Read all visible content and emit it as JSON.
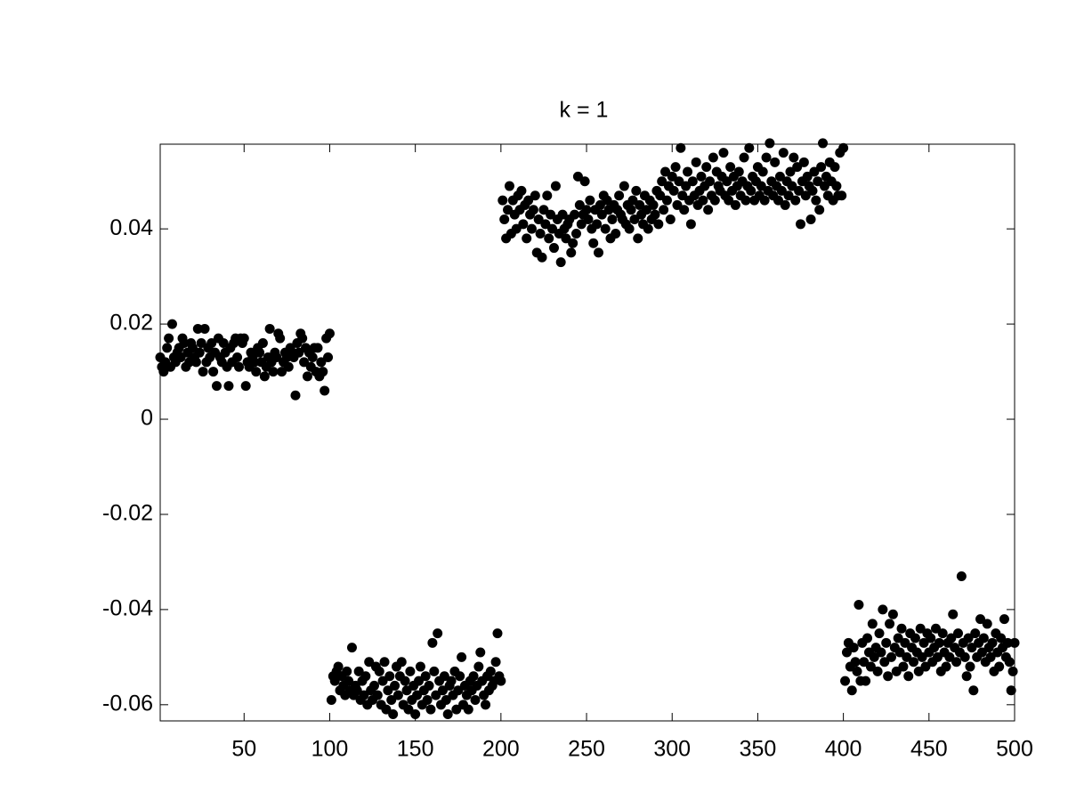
{
  "chart_data": {
    "type": "scatter",
    "title": "k = 1",
    "color": "#000000",
    "xlim": [
      1,
      500
    ],
    "xticks": [
      50,
      100,
      150,
      200,
      250,
      300,
      350,
      400,
      450,
      500
    ],
    "ylim": [
      -0.0634,
      0.0578
    ],
    "yticks": [
      -0.06,
      -0.04,
      -0.02,
      0,
      0.02,
      0.04
    ],
    "x": [
      1,
      2,
      3,
      4,
      5,
      6,
      7,
      8,
      9,
      10,
      11,
      12,
      13,
      14,
      15,
      16,
      17,
      18,
      19,
      20,
      21,
      22,
      23,
      24,
      25,
      26,
      27,
      28,
      29,
      30,
      31,
      32,
      33,
      34,
      35,
      36,
      37,
      38,
      39,
      40,
      41,
      42,
      43,
      44,
      45,
      46,
      47,
      48,
      49,
      50,
      51,
      52,
      53,
      54,
      55,
      56,
      57,
      58,
      59,
      60,
      61,
      62,
      63,
      64,
      65,
      66,
      67,
      68,
      69,
      70,
      71,
      72,
      73,
      74,
      75,
      76,
      77,
      78,
      79,
      80,
      81,
      82,
      83,
      84,
      85,
      86,
      87,
      88,
      89,
      90,
      91,
      92,
      93,
      94,
      95,
      96,
      97,
      98,
      99,
      100,
      101,
      102,
      103,
      104,
      105,
      106,
      107,
      108,
      109,
      110,
      111,
      112,
      113,
      114,
      115,
      116,
      117,
      118,
      119,
      120,
      121,
      122,
      123,
      124,
      125,
      126,
      127,
      128,
      129,
      130,
      131,
      132,
      133,
      134,
      135,
      136,
      137,
      138,
      139,
      140,
      141,
      142,
      143,
      144,
      145,
      146,
      147,
      148,
      149,
      150,
      151,
      152,
      153,
      154,
      155,
      156,
      157,
      158,
      159,
      160,
      161,
      162,
      163,
      164,
      165,
      166,
      167,
      168,
      169,
      170,
      171,
      172,
      173,
      174,
      175,
      176,
      177,
      178,
      179,
      180,
      181,
      182,
      183,
      184,
      185,
      186,
      187,
      188,
      189,
      190,
      191,
      192,
      193,
      194,
      195,
      196,
      197,
      198,
      199,
      200,
      201,
      202,
      203,
      204,
      205,
      206,
      207,
      208,
      209,
      210,
      211,
      212,
      213,
      214,
      215,
      216,
      217,
      218,
      219,
      220,
      221,
      222,
      223,
      224,
      225,
      226,
      227,
      228,
      229,
      230,
      231,
      232,
      233,
      234,
      235,
      236,
      237,
      238,
      239,
      240,
      241,
      242,
      243,
      244,
      245,
      246,
      247,
      248,
      249,
      250,
      251,
      252,
      253,
      254,
      255,
      256,
      257,
      258,
      259,
      260,
      261,
      262,
      263,
      264,
      265,
      266,
      267,
      268,
      269,
      270,
      271,
      272,
      273,
      274,
      275,
      276,
      277,
      278,
      279,
      280,
      281,
      282,
      283,
      284,
      285,
      286,
      287,
      288,
      289,
      290,
      291,
      292,
      293,
      294,
      295,
      296,
      297,
      298,
      299,
      300,
      301,
      302,
      303,
      304,
      305,
      306,
      307,
      308,
      309,
      310,
      311,
      312,
      313,
      314,
      315,
      316,
      317,
      318,
      319,
      320,
      321,
      322,
      323,
      324,
      325,
      326,
      327,
      328,
      329,
      330,
      331,
      332,
      333,
      334,
      335,
      336,
      337,
      338,
      339,
      340,
      341,
      342,
      343,
      344,
      345,
      346,
      347,
      348,
      349,
      350,
      351,
      352,
      353,
      354,
      355,
      356,
      357,
      358,
      359,
      360,
      361,
      362,
      363,
      364,
      365,
      366,
      367,
      368,
      369,
      370,
      371,
      372,
      373,
      374,
      375,
      376,
      377,
      378,
      379,
      380,
      381,
      382,
      383,
      384,
      385,
      386,
      387,
      388,
      389,
      390,
      391,
      392,
      393,
      394,
      395,
      396,
      397,
      398,
      399,
      400,
      401,
      402,
      403,
      404,
      405,
      406,
      407,
      408,
      409,
      410,
      411,
      412,
      413,
      414,
      415,
      416,
      417,
      418,
      419,
      420,
      421,
      422,
      423,
      424,
      425,
      426,
      427,
      428,
      429,
      430,
      431,
      432,
      433,
      434,
      435,
      436,
      437,
      438,
      439,
      440,
      441,
      442,
      443,
      444,
      445,
      446,
      447,
      448,
      449,
      450,
      451,
      452,
      453,
      454,
      455,
      456,
      457,
      458,
      459,
      460,
      461,
      462,
      463,
      464,
      465,
      466,
      467,
      468,
      469,
      470,
      471,
      472,
      473,
      474,
      475,
      476,
      477,
      478,
      479,
      480,
      481,
      482,
      483,
      484,
      485,
      486,
      487,
      488,
      489,
      490,
      491,
      492,
      493,
      494,
      495,
      496,
      497,
      498,
      499,
      500
    ],
    "values": [
      0.013,
      0.011,
      0.01,
      0.012,
      0.015,
      0.017,
      0.011,
      0.02,
      0.013,
      0.012,
      0.014,
      0.015,
      0.013,
      0.017,
      0.016,
      0.011,
      0.014,
      0.012,
      0.016,
      0.015,
      0.013,
      0.012,
      0.019,
      0.014,
      0.016,
      0.01,
      0.019,
      0.012,
      0.015,
      0.013,
      0.016,
      0.01,
      0.014,
      0.007,
      0.017,
      0.013,
      0.012,
      0.016,
      0.014,
      0.011,
      0.007,
      0.015,
      0.012,
      0.016,
      0.017,
      0.013,
      0.011,
      0.017,
      0.016,
      0.017,
      0.007,
      0.012,
      0.011,
      0.014,
      0.013,
      0.012,
      0.01,
      0.015,
      0.014,
      0.012,
      0.016,
      0.009,
      0.011,
      0.013,
      0.019,
      0.012,
      0.01,
      0.014,
      0.013,
      0.018,
      0.017,
      0.01,
      0.012,
      0.014,
      0.013,
      0.011,
      0.015,
      0.014,
      0.013,
      0.005,
      0.016,
      0.014,
      0.018,
      0.017,
      0.012,
      0.015,
      0.009,
      0.014,
      0.011,
      0.013,
      0.015,
      0.01,
      0.015,
      0.009,
      0.012,
      0.01,
      0.006,
      0.017,
      0.013,
      0.018,
      -0.059,
      -0.054,
      -0.055,
      -0.053,
      -0.052,
      -0.057,
      -0.054,
      -0.056,
      -0.058,
      -0.053,
      -0.055,
      -0.057,
      -0.048,
      -0.058,
      -0.056,
      -0.057,
      -0.053,
      -0.059,
      -0.055,
      -0.058,
      -0.054,
      -0.06,
      -0.051,
      -0.057,
      -0.059,
      -0.056,
      -0.052,
      -0.058,
      -0.053,
      -0.06,
      -0.055,
      -0.051,
      -0.061,
      -0.057,
      -0.054,
      -0.059,
      -0.062,
      -0.056,
      -0.052,
      -0.058,
      -0.054,
      -0.051,
      -0.06,
      -0.055,
      -0.057,
      -0.061,
      -0.053,
      -0.059,
      -0.056,
      -0.062,
      -0.058,
      -0.055,
      -0.052,
      -0.06,
      -0.057,
      -0.054,
      -0.059,
      -0.056,
      -0.061,
      -0.047,
      -0.053,
      -0.058,
      -0.045,
      -0.055,
      -0.06,
      -0.057,
      -0.054,
      -0.059,
      -0.062,
      -0.056,
      -0.055,
      -0.058,
      -0.053,
      -0.061,
      -0.057,
      -0.054,
      -0.05,
      -0.06,
      -0.056,
      -0.058,
      -0.061,
      -0.055,
      -0.057,
      -0.054,
      -0.059,
      -0.056,
      -0.052,
      -0.049,
      -0.055,
      -0.058,
      -0.06,
      -0.054,
      -0.057,
      -0.053,
      -0.056,
      -0.055,
      -0.051,
      -0.045,
      -0.054,
      -0.055,
      0.046,
      0.042,
      0.038,
      0.044,
      0.049,
      0.039,
      0.046,
      0.043,
      0.04,
      0.047,
      0.044,
      0.048,
      0.041,
      0.045,
      0.038,
      0.046,
      0.043,
      0.04,
      0.044,
      0.047,
      0.035,
      0.042,
      0.039,
      0.034,
      0.044,
      0.041,
      0.047,
      0.038,
      0.043,
      0.04,
      0.036,
      0.049,
      0.042,
      0.039,
      0.033,
      0.043,
      0.04,
      0.038,
      0.041,
      0.042,
      0.035,
      0.037,
      0.043,
      0.039,
      0.051,
      0.045,
      0.041,
      0.043,
      0.05,
      0.044,
      0.042,
      0.046,
      0.04,
      0.037,
      0.044,
      0.041,
      0.035,
      0.045,
      0.043,
      0.047,
      0.04,
      0.046,
      0.044,
      0.038,
      0.042,
      0.045,
      0.039,
      0.044,
      0.047,
      0.043,
      0.042,
      0.049,
      0.041,
      0.045,
      0.04,
      0.044,
      0.046,
      0.042,
      0.048,
      0.038,
      0.045,
      0.043,
      0.041,
      0.047,
      0.044,
      0.04,
      0.046,
      0.042,
      0.045,
      0.043,
      0.048,
      0.041,
      0.047,
      0.05,
      0.044,
      0.052,
      0.046,
      0.049,
      0.042,
      0.051,
      0.048,
      0.053,
      0.045,
      0.05,
      0.057,
      0.047,
      0.044,
      0.049,
      0.052,
      0.046,
      0.041,
      0.05,
      0.047,
      0.054,
      0.045,
      0.048,
      0.051,
      0.046,
      0.049,
      0.053,
      0.044,
      0.05,
      0.047,
      0.055,
      0.046,
      0.052,
      0.049,
      0.048,
      0.051,
      0.056,
      0.047,
      0.05,
      0.046,
      0.053,
      0.048,
      0.051,
      0.045,
      0.049,
      0.052,
      0.047,
      0.05,
      0.055,
      0.046,
      0.049,
      0.057,
      0.048,
      0.051,
      0.046,
      0.05,
      0.053,
      0.047,
      0.049,
      0.052,
      0.046,
      0.055,
      0.048,
      0.058,
      0.05,
      0.047,
      0.054,
      0.049,
      0.046,
      0.051,
      0.048,
      0.056,
      0.045,
      0.05,
      0.047,
      0.052,
      0.049,
      0.055,
      0.046,
      0.053,
      0.048,
      0.041,
      0.05,
      0.054,
      0.047,
      0.051,
      0.049,
      0.042,
      0.048,
      0.052,
      0.046,
      0.05,
      0.044,
      0.053,
      0.058,
      0.049,
      0.051,
      0.047,
      0.054,
      0.05,
      0.046,
      0.053,
      0.049,
      0.047,
      0.056,
      0.047,
      0.057,
      -0.055,
      -0.049,
      -0.047,
      -0.052,
      -0.057,
      -0.048,
      -0.051,
      -0.053,
      -0.039,
      -0.055,
      -0.047,
      -0.051,
      -0.055,
      -0.046,
      -0.049,
      -0.052,
      -0.043,
      -0.05,
      -0.048,
      -0.053,
      -0.045,
      -0.049,
      -0.04,
      -0.051,
      -0.047,
      -0.054,
      -0.043,
      -0.05,
      -0.041,
      -0.048,
      -0.053,
      -0.046,
      -0.049,
      -0.044,
      -0.052,
      -0.047,
      -0.05,
      -0.054,
      -0.045,
      -0.048,
      -0.051,
      -0.046,
      -0.049,
      -0.053,
      -0.044,
      -0.05,
      -0.047,
      -0.052,
      -0.045,
      -0.049,
      -0.046,
      -0.051,
      -0.048,
      -0.044,
      -0.05,
      -0.047,
      -0.053,
      -0.045,
      -0.049,
      -0.052,
      -0.047,
      -0.05,
      -0.046,
      -0.041,
      -0.048,
      -0.051,
      -0.045,
      -0.049,
      -0.033,
      -0.047,
      -0.05,
      -0.054,
      -0.046,
      -0.052,
      -0.048,
      -0.057,
      -0.045,
      -0.05,
      -0.047,
      -0.042,
      -0.049,
      -0.046,
      -0.051,
      -0.043,
      -0.048,
      -0.05,
      -0.047,
      -0.053,
      -0.045,
      -0.049,
      -0.052,
      -0.046,
      -0.048,
      -0.042,
      -0.05,
      -0.047,
      -0.051,
      -0.057,
      -0.053,
      -0.047
    ]
  }
}
